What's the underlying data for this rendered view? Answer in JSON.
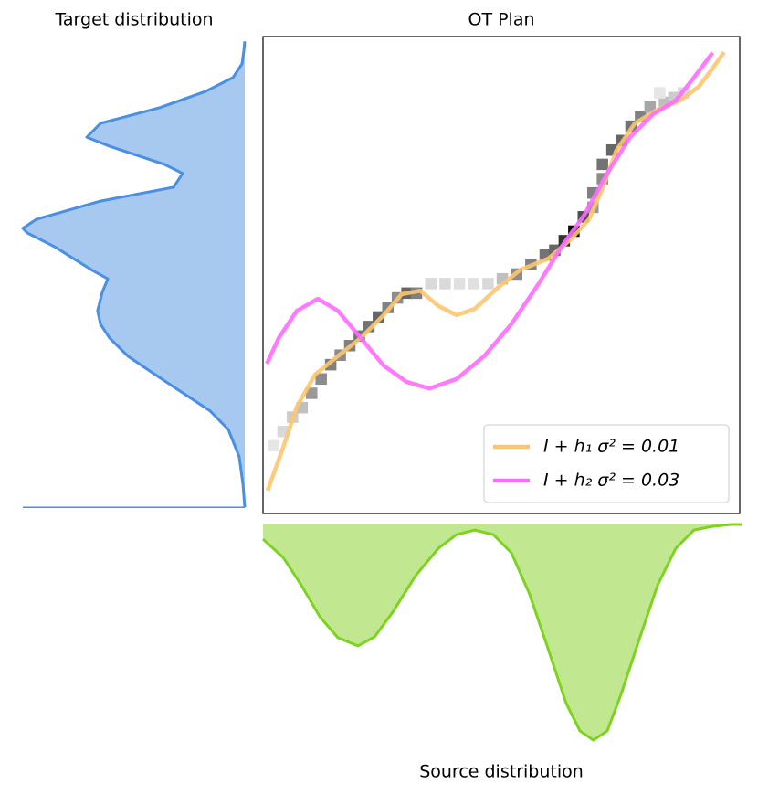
{
  "chart_data": [
    {
      "type": "density-left",
      "title": "Target distribution",
      "color": "#4a90e2",
      "fill": "#a7c8ef",
      "ylim": [
        0,
        100
      ],
      "xlim": [
        0,
        100
      ],
      "y": [
        1.3,
        6.1,
        11.9,
        17.6,
        21.5,
        25.3,
        29.1,
        33.0,
        36.8,
        39.7,
        42.5,
        46.4,
        49.2,
        51.1,
        55.9,
        58.8,
        59.8,
        61.7,
        65.5,
        68.4,
        71.3,
        73.2,
        77.0,
        78.9,
        81.8,
        85.1,
        88.5,
        91.4,
        94.3,
        97.1,
        99.0
      ],
      "values": [
        0,
        0.8,
        2.5,
        7.4,
        15.6,
        28.0,
        40.3,
        52.7,
        60.9,
        65.0,
        66.3,
        64.2,
        61.7,
        69.1,
        85.6,
        97.9,
        100,
        93.8,
        65.0,
        32.1,
        28.0,
        36.2,
        60.9,
        71.2,
        65.0,
        38.3,
        17.7,
        5.3,
        1.2,
        0.4,
        0
      ]
    },
    {
      "type": "ot-plan",
      "title": "OT Plan",
      "xlim": [
        0,
        100
      ],
      "ylim": [
        0,
        100
      ],
      "legend": "lower right",
      "cells": {
        "x": [
          1,
          3,
          5,
          7,
          9,
          11,
          13,
          15,
          17,
          19,
          21,
          23,
          25,
          27,
          29,
          31,
          34,
          37,
          40,
          43,
          46,
          49,
          52,
          55,
          58,
          60,
          62,
          64,
          66,
          68,
          68,
          70,
          70,
          72,
          74,
          76,
          78,
          80,
          83,
          85,
          87,
          82
        ],
        "y": [
          13,
          16,
          19,
          21,
          24,
          27,
          30,
          32,
          34,
          36,
          38,
          40,
          42,
          44,
          45,
          45,
          47,
          47,
          47,
          47,
          47,
          48,
          49,
          51,
          53,
          54,
          56,
          58,
          61,
          63,
          66,
          69,
          72,
          75,
          77,
          80,
          82,
          84,
          85,
          86,
          87,
          87
        ],
        "values": [
          0.1,
          0.15,
          0.2,
          0.25,
          0.4,
          0.45,
          0.5,
          0.45,
          0.5,
          0.55,
          0.55,
          0.6,
          0.5,
          0.45,
          0.6,
          0.5,
          0.15,
          0.15,
          0.12,
          0.12,
          0.15,
          0.25,
          0.45,
          0.5,
          0.55,
          0.6,
          0.8,
          0.95,
          0.7,
          0.4,
          0.5,
          0.45,
          0.55,
          0.6,
          0.6,
          0.55,
          0.5,
          0.35,
          0.25,
          0.2,
          0.15,
          0.1
        ]
      },
      "series": [
        {
          "name": "I + h₁  σ² = 0.01",
          "color": "#fdc56e",
          "x": [
            0.96,
            4.2,
            7.1,
            10.9,
            15.7,
            20.5,
            25.3,
            29.1,
            33.0,
            36.8,
            40.6,
            44.4,
            49.2,
            54.0,
            59.8,
            64.6,
            68.4,
            71.3,
            74.1,
            78.0,
            82.8,
            87.5,
            91.4,
            94.3,
            96.7
          ],
          "values": [
            4.8,
            13.8,
            22.4,
            29.1,
            33.0,
            36.8,
            41.6,
            46.0,
            46.7,
            43.5,
            41.6,
            42.9,
            47.3,
            51.1,
            53.4,
            57.5,
            61.7,
            68.4,
            76.1,
            81.8,
            84.7,
            86.6,
            89.5,
            93.3,
            96.7
          ]
        },
        {
          "name": "I + h₂  σ² = 0.03",
          "color": "#ff6bff",
          "x": [
            0.8,
            3.3,
            7.1,
            11.5,
            15.7,
            20.5,
            25.3,
            30.1,
            34.9,
            40.6,
            46.4,
            52.1,
            57.9,
            62.6,
            67.4,
            72.2,
            77.0,
            81.8,
            86.6,
            90.4,
            94.3
          ],
          "values": [
            31.4,
            36.8,
            42.5,
            45.0,
            42.5,
            36.8,
            31.0,
            27.6,
            26.2,
            28.2,
            33.0,
            39.7,
            48.3,
            55.9,
            62.6,
            71.3,
            78.9,
            83.7,
            86.6,
            91.4,
            96.6
          ]
        }
      ]
    },
    {
      "type": "density-bottom",
      "title": "Source distribution",
      "color": "#7ed321",
      "fill": "#c1e891",
      "xlim": [
        0,
        100
      ],
      "ylim": [
        0,
        100
      ],
      "x": [
        0,
        4.2,
        8.0,
        11.9,
        15.7,
        19.9,
        23.4,
        27.2,
        32.0,
        36.8,
        40.6,
        44.4,
        48.3,
        52.1,
        55.9,
        59.8,
        63.6,
        66.5,
        69.3,
        72.2,
        75.1,
        78.9,
        82.8,
        86.6,
        90.4,
        94.3,
        98.1,
        100.4
      ],
      "values": [
        7.2,
        15.6,
        28.3,
        43.0,
        52.7,
        56.5,
        52.3,
        40.9,
        24.1,
        11.4,
        5.1,
        3.0,
        5.1,
        13.5,
        32.5,
        57.8,
        83.1,
        95.8,
        100,
        95.8,
        78.9,
        53.6,
        28.3,
        11.4,
        3.0,
        1.3,
        0.4,
        0.4
      ]
    }
  ]
}
